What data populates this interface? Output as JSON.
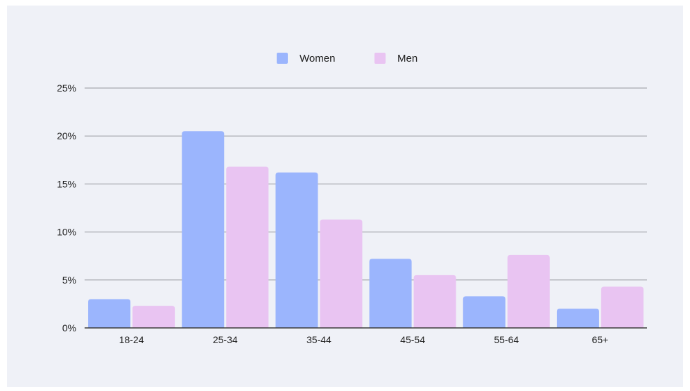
{
  "chart_data": {
    "type": "bar",
    "title": "",
    "xlabel": "",
    "ylabel": "",
    "categories": [
      "18-24",
      "25-34",
      "35-44",
      "45-54",
      "55-64",
      "65+"
    ],
    "series": [
      {
        "name": "Women",
        "color": "#9bb5fd",
        "values": [
          3.0,
          20.5,
          16.2,
          7.2,
          3.3,
          2.0
        ]
      },
      {
        "name": "Men",
        "color": "#e9c4f2",
        "values": [
          2.3,
          16.8,
          11.3,
          5.5,
          7.6,
          4.3
        ]
      }
    ],
    "ylim": [
      0,
      25
    ],
    "yticks": [
      0,
      5,
      10,
      15,
      20,
      25
    ],
    "ytick_labels": [
      "0%",
      "5%",
      "10%",
      "15%",
      "20%",
      "25%"
    ],
    "grid": true,
    "legend_position": "top-center"
  }
}
